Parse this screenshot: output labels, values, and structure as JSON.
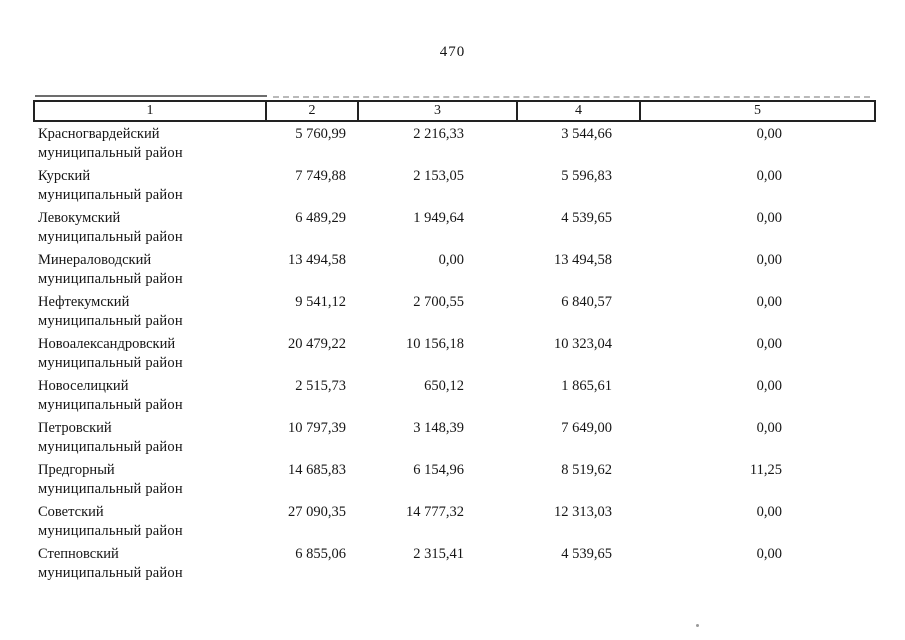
{
  "page": {
    "number": "470"
  },
  "table": {
    "headers": [
      "1",
      "2",
      "3",
      "4",
      "5"
    ],
    "name_line2": "муниципальный район",
    "rows": [
      {
        "name": "Красногвардейский",
        "col2": "5 760,99",
        "col3": "2 216,33",
        "col4": "3 544,66",
        "col5": "0,00"
      },
      {
        "name": "Курский",
        "col2": "7 749,88",
        "col3": "2 153,05",
        "col4": "5 596,83",
        "col5": "0,00"
      },
      {
        "name": "Левокумский",
        "col2": "6 489,29",
        "col3": "1 949,64",
        "col4": "4 539,65",
        "col5": "0,00"
      },
      {
        "name": "Минераловодский",
        "col2": "13 494,58",
        "col3": "0,00",
        "col4": "13 494,58",
        "col5": "0,00"
      },
      {
        "name": "Нефтекумский",
        "col2": "9 541,12",
        "col3": "2 700,55",
        "col4": "6 840,57",
        "col5": "0,00"
      },
      {
        "name": "Новоалександровский",
        "col2": "20 479,22",
        "col3": "10 156,18",
        "col4": "10 323,04",
        "col5": "0,00"
      },
      {
        "name": "Новоселицкий",
        "col2": "2 515,73",
        "col3": "650,12",
        "col4": "1 865,61",
        "col5": "0,00"
      },
      {
        "name": "Петровский",
        "col2": "10 797,39",
        "col3": "3 148,39",
        "col4": "7 649,00",
        "col5": "0,00"
      },
      {
        "name": "Предгорный",
        "col2": "14 685,83",
        "col3": "6 154,96",
        "col4": "8 519,62",
        "col5": "11,25"
      },
      {
        "name": "Советский",
        "col2": "27 090,35",
        "col3": "14 777,32",
        "col4": "12 313,03",
        "col5": "0,00"
      },
      {
        "name": "Степновский",
        "col2": "6 855,06",
        "col3": "2 315,41",
        "col4": "4 539,65",
        "col5": "0,00"
      }
    ]
  }
}
